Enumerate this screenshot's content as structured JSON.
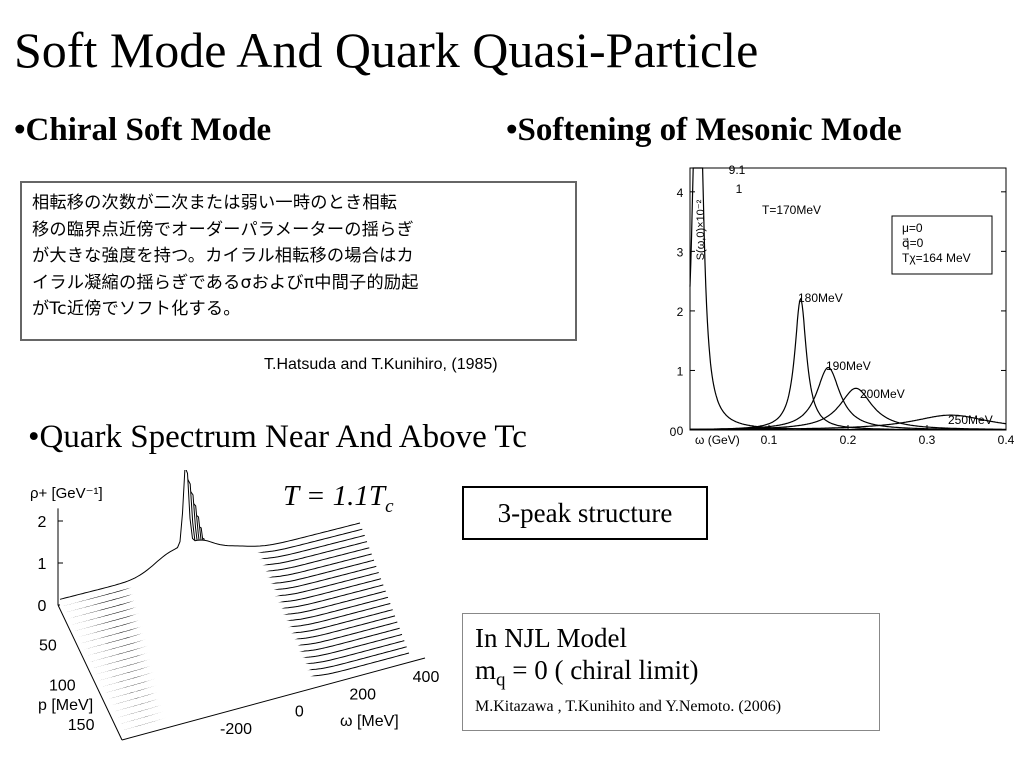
{
  "slide": {
    "title": "Soft Mode And Quark Quasi-Particle"
  },
  "left_section": {
    "heading": "•Chiral Soft Mode",
    "japanese_lines": [
      "相転移の次数が二次または弱い一時のとき相転",
      "移の臨界点近傍でオーダーパラメーターの揺らぎ",
      "が大きな強度を持つ。カイラル相転移の場合はカ",
      "イラル凝縮の揺らぎであるσおよびπ中間子的励起",
      "がTc近傍でソフト化する。"
    ],
    "citation": "T.Hatsuda and T.Kunihiro, (1985)"
  },
  "right_section": {
    "heading": "•Softening of Mesonic Mode"
  },
  "quark_section": {
    "heading": "•Quark Spectrum Near And Above Tc",
    "temperature_label": "T = 1.1T",
    "temperature_sub": "c",
    "peak_box": "3-peak structure",
    "njl": {
      "title": "In NJL Model",
      "mass_prefix": "m",
      "mass_sub": "q",
      "mass_suffix": " = 0 ( chiral limit)",
      "citation": "M.Kitazawa , T.Kunihito and Y.Nemoto. (2006)"
    }
  },
  "chart_data": [
    {
      "type": "line",
      "title": "",
      "xlabel": "ω (GeV)",
      "ylabel": "S(ω,0)×10⁻²",
      "xlim": [
        0,
        0.4
      ],
      "ylim": [
        0,
        4.4
      ],
      "x_ticks": [
        "0.1",
        "0.2",
        "0.3",
        "0.4"
      ],
      "y_ticks": [
        "0",
        "1",
        "2",
        "3",
        "4"
      ],
      "legend_box": [
        "μ=0",
        "q⃗=0",
        "Tχ=164 MeV"
      ],
      "annotations": [
        "9.1",
        "1"
      ],
      "series": [
        {
          "name": "T=170MeV",
          "peak_omega": 0.01,
          "peak_height": 9.1,
          "width": 0.006
        },
        {
          "name": "180MeV",
          "peak_omega": 0.14,
          "peak_height": 2.2,
          "width": 0.009
        },
        {
          "name": "190MeV",
          "peak_omega": 0.175,
          "peak_height": 1.05,
          "width": 0.018
        },
        {
          "name": "200MeV",
          "peak_omega": 0.21,
          "peak_height": 0.7,
          "width": 0.025
        },
        {
          "name": "250MeV",
          "peak_omega": 0.33,
          "peak_height": 0.25,
          "width": 0.06
        }
      ]
    },
    {
      "type": "area",
      "title": "T = 1.1Tc",
      "xlabel": "ω [MeV]",
      "ylabel": "ρ+ [GeV⁻¹]",
      "zlabel": "p [MeV]",
      "y_ticks": [
        "0",
        "1",
        "2"
      ],
      "p_ticks": [
        "50",
        "100",
        "150"
      ],
      "omega_ticks": [
        "-200",
        "0",
        "200",
        "400"
      ],
      "description_peaks": "3-peak structure"
    }
  ]
}
